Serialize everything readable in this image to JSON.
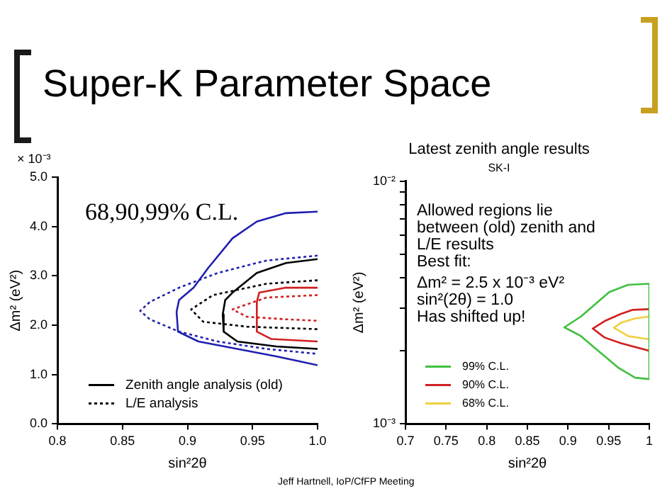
{
  "chart_data": [
    {
      "type": "line",
      "title": "Super-K Parameter Space",
      "xlabel": "sin²2θ",
      "ylabel": "Δm² (eV²)",
      "annotations": [
        "× 10⁻³",
        "68,90,99% C.L."
      ],
      "xlim": [
        0.8,
        1.0
      ],
      "xticks": [
        0.8,
        0.85,
        0.9,
        0.95,
        {
          "value": 1.0,
          "label": "1.0"
        }
      ],
      "ylim": [
        0,
        5
      ],
      "yticks": [
        {
          "value": 0,
          "label": "0.0"
        },
        {
          "value": 1,
          "label": "1.0"
        },
        {
          "value": 2,
          "label": "2.0"
        },
        {
          "value": 3,
          "label": "3.0"
        },
        {
          "value": 4,
          "label": "4.0"
        },
        {
          "value": 5,
          "label": "5.0"
        }
      ],
      "marker": "none",
      "legend": "bottom left",
      "grid": false,
      "series": [
        {
          "color": "#2020b0",
          "line_style": "solid",
          "x": [
            1.0,
            0.9757,
            0.9533,
            0.9346,
            0.9159,
            0.9047,
            0.8935,
            0.8916,
            0.8927,
            0.9084,
            0.9383,
            0.9682,
            1.0
          ],
          "values": [
            4.3,
            4.27,
            4.1,
            3.76,
            3.16,
            2.76,
            2.51,
            2.27,
            1.87,
            1.67,
            1.52,
            1.37,
            1.19
          ]
        },
        {
          "color": "#2020b0",
          "line_style": "dotted",
          "x": [
            1.0,
            0.9607,
            0.9234,
            0.8935,
            0.871,
            0.8636,
            0.871,
            0.8935,
            0.9234,
            0.9607,
            1.0
          ],
          "values": [
            3.41,
            3.31,
            3.06,
            2.76,
            2.47,
            2.29,
            2.12,
            1.87,
            1.67,
            1.52,
            1.42
          ]
        },
        {
          "name": "Zenith angle analysis (old)",
          "color": "#000000",
          "line_style": "solid",
          "x": [
            1.0,
            0.9757,
            0.9533,
            0.9346,
            0.929,
            0.9271,
            0.9278,
            0.9383,
            0.9682,
            1.0
          ],
          "values": [
            3.34,
            3.26,
            3.06,
            2.66,
            2.51,
            2.22,
            1.87,
            1.67,
            1.57,
            1.52
          ]
        },
        {
          "name": "L/E analysis",
          "color": "#000000",
          "line_style": "dotted",
          "x": [
            1.0,
            0.9607,
            0.9196,
            0.9028,
            0.9121,
            0.9458,
            1.0
          ],
          "values": [
            2.91,
            2.84,
            2.61,
            2.32,
            2.07,
            1.97,
            1.92
          ]
        },
        {
          "color": "#d02020",
          "line_style": "solid",
          "x": [
            1.0,
            0.9757,
            0.9551,
            0.9533,
            0.9533,
            0.9645,
            1.0
          ],
          "values": [
            2.76,
            2.76,
            2.66,
            2.47,
            1.87,
            1.72,
            1.67
          ]
        },
        {
          "color": "#d02020",
          "line_style": "dotted",
          "x": [
            1.0,
            0.9607,
            0.9346,
            0.9458,
            0.9757,
            1.0
          ],
          "values": [
            2.61,
            2.56,
            2.32,
            2.17,
            2.12,
            2.09
          ]
        }
      ]
    },
    {
      "type": "line",
      "title": "Latest zenith angle results",
      "subtitle": "SK-I",
      "xlabel": "sin²2θ",
      "ylabel": "Δm² (eV²)",
      "annotations": [
        "Allowed regions lie\nbetween (old) zenith and\nL/E results\nBest fit:\nΔm² = 2.5 x 10⁻³ eV²\nsin²(2θ) = 1.0\nHas shifted up!",
        "Jeff Hartnell, IoP/CfFP Meeting"
      ],
      "xlim": [
        0.7,
        1
      ],
      "xticks": [
        0.7,
        0.75,
        0.8,
        0.85,
        0.9,
        0.95,
        1
      ],
      "ylim": [
        0.001,
        0.01
      ],
      "yticks": [
        {
          "value": 0.001,
          "label": "10⁻³"
        },
        {
          "value": 0.002,
          "label": null
        },
        {
          "value": 0.003,
          "label": null
        },
        {
          "value": 0.004,
          "label": null
        },
        {
          "value": 0.005,
          "label": null
        },
        {
          "value": 0.006,
          "label": null
        },
        {
          "value": 0.007,
          "label": null
        },
        {
          "value": 0.008,
          "label": null
        },
        {
          "value": 0.009,
          "label": null
        },
        {
          "value": 0.01,
          "label": "10⁻²"
        }
      ],
      "log": "y",
      "marker": "none",
      "legend": "bottom left",
      "grid": false,
      "series": [
        {
          "name": "99% C.L.",
          "color": "#40c040",
          "line_style": "solid",
          "x": [
            1,
            0.9739,
            0.9507,
            0.9333,
            0.9159,
            0.8955,
            0.9159,
            0.9333,
            0.9623,
            0.9826,
            1
          ],
          "values": [
            0.00378,
            0.00374,
            0.00349,
            0.00311,
            0.00277,
            0.0025,
            0.0023,
            0.00205,
            0.0017,
            0.00155,
            0.00153
          ]
        },
        {
          "color": "#40c040",
          "line_style": "solid",
          "x": [
            1,
            1
          ],
          "values": [
            0.00153,
            0.00378
          ]
        },
        {
          "name": "90% C.L.",
          "color": "#d02020",
          "line_style": "solid",
          "x": [
            1,
            0.9797,
            0.9652,
            0.9449,
            0.9304,
            0.9449,
            0.9652,
            1
          ],
          "values": [
            0.00297,
            0.00295,
            0.00284,
            0.00265,
            0.00247,
            0.00227,
            0.00215,
            0.002
          ]
        },
        {
          "name": "68% C.L.",
          "color": "#f0d040",
          "line_style": "solid",
          "x": [
            1,
            0.9826,
            0.9652,
            0.9565,
            0.9739,
            1
          ],
          "values": [
            0.00277,
            0.00272,
            0.00261,
            0.00249,
            0.0023,
            0.00223
          ]
        }
      ]
    }
  ]
}
